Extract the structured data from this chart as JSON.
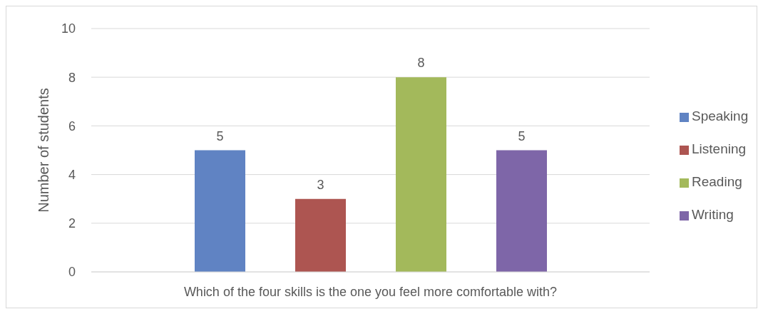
{
  "chart_data": {
    "type": "bar",
    "ylabel": "Number of students",
    "categories": [
      "Which of the four skills is the one you feel more comfortable with?"
    ],
    "series": [
      {
        "name": "Speaking",
        "color": "#6083c3",
        "values": [
          5
        ]
      },
      {
        "name": "Listening",
        "color": "#ad5551",
        "values": [
          3
        ]
      },
      {
        "name": "Reading",
        "color": "#a3b95b",
        "values": [
          8
        ]
      },
      {
        "name": "Writing",
        "color": "#7e66a8",
        "values": [
          5
        ]
      }
    ],
    "ylim": [
      0,
      10
    ],
    "yticks": [
      0,
      2,
      4,
      6,
      8,
      10
    ],
    "grid": "y",
    "legend": "right",
    "data_labels": true
  }
}
